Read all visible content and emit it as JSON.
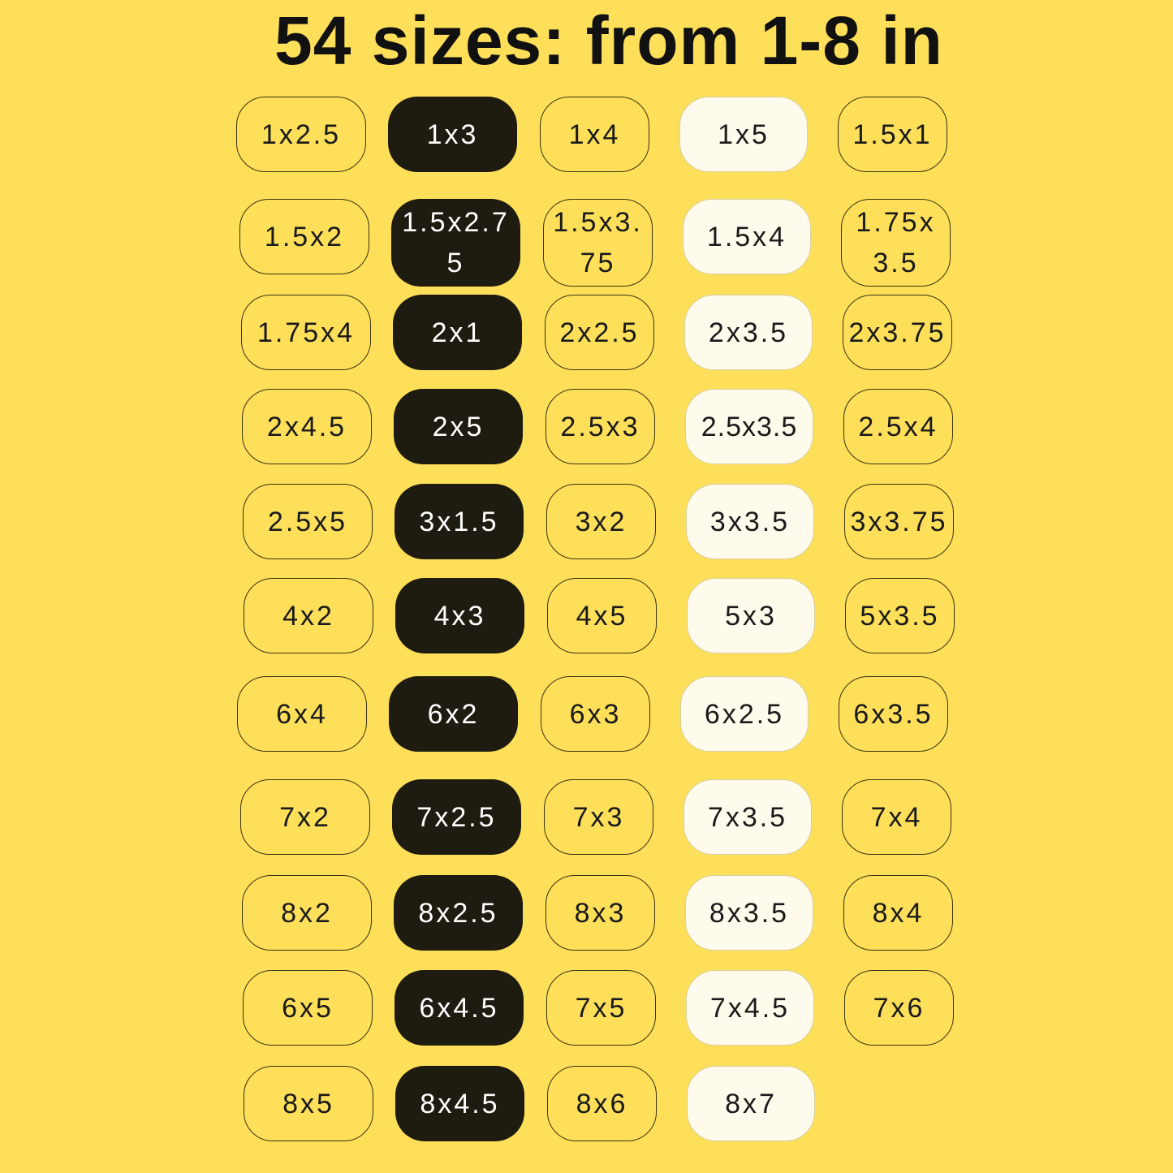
{
  "title": "54 sizes: from 1-8 in",
  "colors": {
    "background": "#fddf5a",
    "dark_chip": "#1e1b10",
    "cream_chip": "#fffbec",
    "outline": "#3a3410"
  },
  "rows": [
    [
      "1x2.5",
      "1x3",
      "1x4",
      "1x5",
      "1.5x1"
    ],
    [
      "1.5x2",
      "1.5x2.75",
      "1.5x3.75",
      "1.5x4",
      "1.75x3.5"
    ],
    [
      "1.75x4",
      "2x1",
      "2x2.5",
      "2x3.5",
      "2x3.75"
    ],
    [
      "2x4.5",
      "2x5",
      "2.5x3",
      "2.5x3.5",
      "2.5x4"
    ],
    [
      "2.5x5",
      "3x1.5",
      "3x2",
      "3x3.5",
      "3x3.75"
    ],
    [
      "4x2",
      "4x3",
      "4x5",
      "5x3",
      "5x3.5"
    ],
    [
      "6x4",
      "6x2",
      "6x3",
      "6x2.5",
      "6x3.5"
    ],
    [
      "7x2",
      "7x2.5",
      "7x3",
      "7x3.5",
      "7x4"
    ],
    [
      "8x2",
      "8x2.5",
      "8x3",
      "8x3.5",
      "8x4"
    ],
    [
      "6x5",
      "6x4.5",
      "7x5",
      "7x4.5",
      "7x6"
    ],
    [
      "8x5",
      "8x4.5",
      "8x6",
      "8x7"
    ]
  ]
}
